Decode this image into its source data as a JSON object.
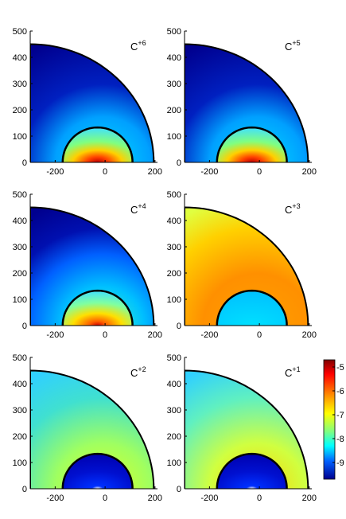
{
  "chart_data": {
    "type": "heatmap",
    "panels": [
      {
        "label": "C",
        "charge": "+6",
        "ymax_tick": "500",
        "pattern": "core"
      },
      {
        "label": "C",
        "charge": "+5",
        "ymax_tick": "500",
        "pattern": "core"
      },
      {
        "label": "C",
        "charge": "+4",
        "ymax_tick": "500",
        "pattern": "core-wide"
      },
      {
        "label": "C",
        "charge": "+3",
        "ymax_tick": "500",
        "pattern": "shell-hot"
      },
      {
        "label": "C",
        "charge": "+2",
        "ymax_tick": "500",
        "pattern": "shell-warm"
      },
      {
        "label": "C",
        "charge": "+1",
        "ymax_tick": "500",
        "pattern": "shell-mid"
      }
    ],
    "x_ticks": [
      -200,
      0,
      200
    ],
    "x_tick_labels": [
      "-200",
      "0",
      "200"
    ],
    "y_ticks": [
      0,
      100,
      200,
      300,
      400,
      500
    ],
    "y_tick_labels": [
      "0",
      "100",
      "200",
      "300",
      "400",
      "500"
    ],
    "xlim": [
      -300,
      210
    ],
    "ylim": [
      0,
      500
    ],
    "grid": false,
    "colorbar": {
      "ticks": [
        -5,
        -6,
        -7,
        -8,
        -9
      ],
      "tick_labels": [
        "-5",
        "-6",
        "-7",
        "-8",
        "-9"
      ],
      "range": [
        -9.7,
        -4.7
      ],
      "colormap": "jet"
    }
  }
}
